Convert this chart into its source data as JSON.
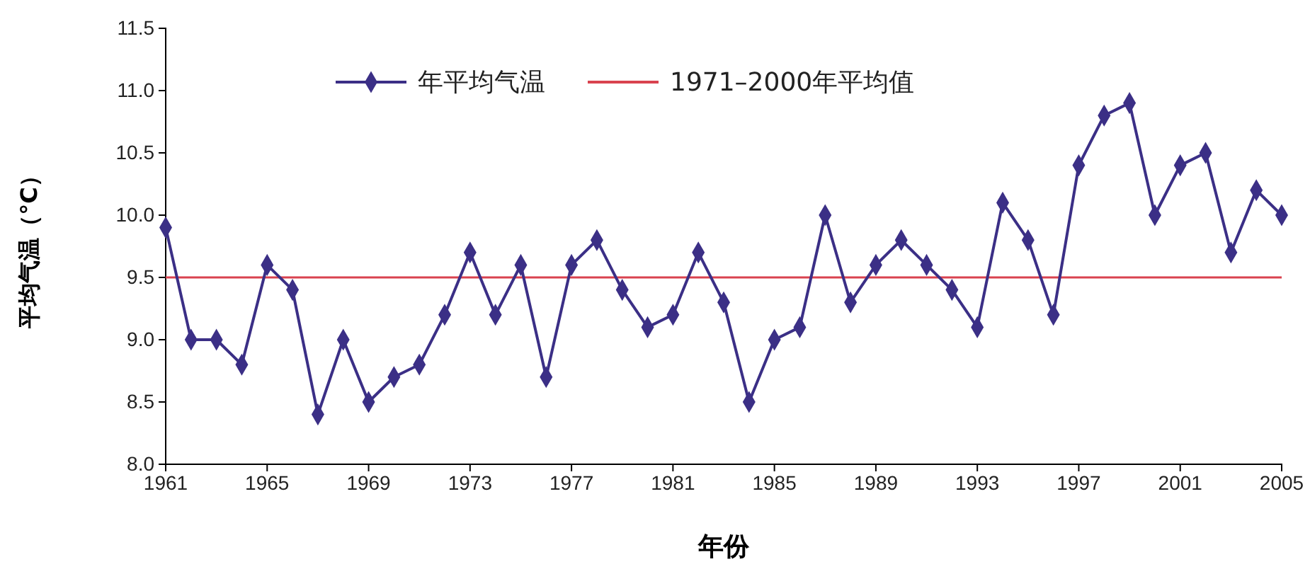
{
  "chart_data": {
    "type": "line",
    "xlabel": "年份",
    "ylabel": "平均气温（°C）",
    "x": [
      1961,
      1962,
      1963,
      1964,
      1965,
      1966,
      1967,
      1968,
      1969,
      1970,
      1971,
      1972,
      1973,
      1974,
      1975,
      1976,
      1977,
      1978,
      1979,
      1980,
      1981,
      1982,
      1983,
      1984,
      1985,
      1986,
      1987,
      1988,
      1989,
      1990,
      1991,
      1992,
      1993,
      1994,
      1995,
      1996,
      1997,
      1998,
      1999,
      2000,
      2001,
      2002,
      2003,
      2004,
      2005
    ],
    "series": [
      {
        "name": "年平均气温",
        "color": "#3b2f86",
        "marker": "diamond",
        "values": [
          9.9,
          9.0,
          9.0,
          8.8,
          9.6,
          9.4,
          8.4,
          9.0,
          8.5,
          8.7,
          8.8,
          9.2,
          9.7,
          9.2,
          9.6,
          8.7,
          9.6,
          9.8,
          9.4,
          9.1,
          9.2,
          9.7,
          9.3,
          8.5,
          9.0,
          9.1,
          10.0,
          9.3,
          9.6,
          9.8,
          9.6,
          9.4,
          9.1,
          10.1,
          9.8,
          9.2,
          10.4,
          10.8,
          10.9,
          10.0,
          10.4,
          10.5,
          9.7,
          10.2,
          10.0
        ]
      }
    ],
    "ref_lines": [
      {
        "axis": "y",
        "value": 9.5,
        "label": "1971–2000年平均值",
        "color": "#d9434f"
      }
    ],
    "xlim": [
      1961,
      2005
    ],
    "xticks": [
      1961,
      1965,
      1969,
      1973,
      1977,
      1981,
      1985,
      1989,
      1993,
      1997,
      2001,
      2005
    ],
    "ylim": [
      8.0,
      11.5
    ],
    "yticks": [
      {
        "value": 8.0,
        "label": "8.0"
      },
      {
        "value": 8.5,
        "label": "8.5"
      },
      {
        "value": 9.0,
        "label": "9.0"
      },
      {
        "value": 9.5,
        "label": "9.5"
      },
      {
        "value": 10.0,
        "label": "10.0"
      },
      {
        "value": 10.5,
        "label": "10.5"
      },
      {
        "value": 11.0,
        "label": "11.0"
      },
      {
        "value": 11.5,
        "label": "11.5"
      }
    ],
    "legend": "top left",
    "grid": false
  }
}
